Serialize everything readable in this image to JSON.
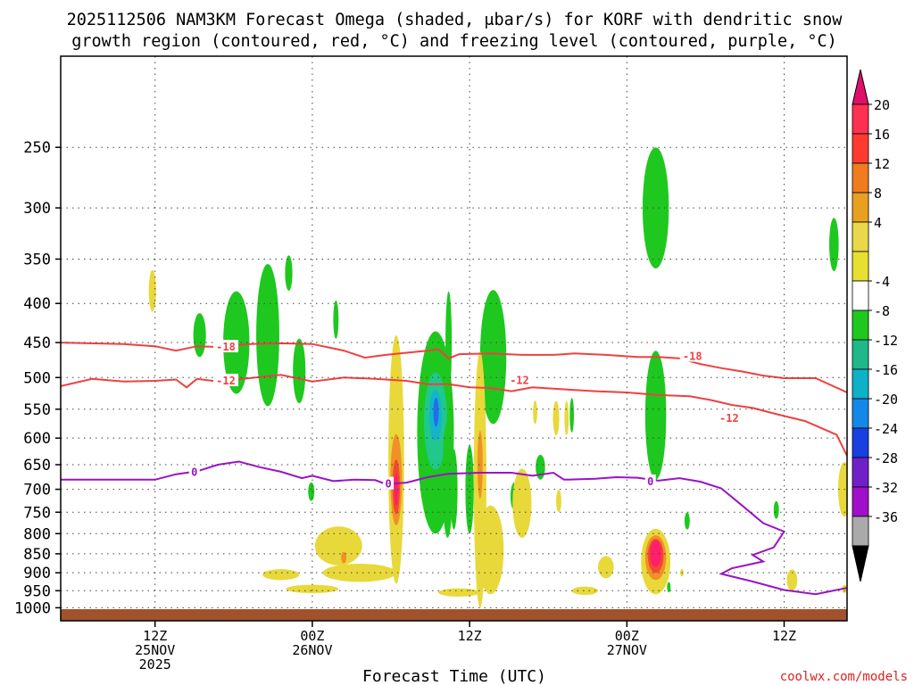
{
  "chart_data": {
    "type": "heatmap",
    "title_lines": [
      "2025112506 NAM3KM Forecast Omega (shaded, μbar/s) for KORF with dendritic snow",
      "growth region (contoured, red, °C) and freezing level (contoured, purple, °C)"
    ],
    "xlabel": "Forecast Time (UTC)",
    "credit": "coolwx.com/models",
    "y_scale": "log",
    "y_range_hpa": [
      1040,
      190
    ],
    "x_range_hours": [
      -18,
      132
    ],
    "y_ticks": [
      250,
      300,
      350,
      400,
      450,
      500,
      550,
      600,
      650,
      700,
      750,
      800,
      850,
      900,
      950,
      1000
    ],
    "x_ticks": [
      {
        "hour": 0,
        "lines": [
          "12Z",
          "25NOV",
          "2025"
        ]
      },
      {
        "hour": 30,
        "lines": [
          "00Z",
          "26NOV"
        ]
      },
      {
        "hour": 60,
        "lines": [
          "12Z"
        ]
      },
      {
        "hour": 90,
        "lines": [
          "00Z",
          "27NOV"
        ]
      },
      {
        "hour": 120,
        "lines": [
          "12Z"
        ]
      }
    ],
    "grid": true,
    "colorbar": {
      "labels": [
        "20",
        "16",
        "12",
        "8",
        "4",
        "-4",
        "-8",
        "-12",
        "-16",
        "-20",
        "-24",
        "-28",
        "-32",
        "-36"
      ],
      "colors_top_to_bottom": [
        "#ff3050",
        "#ff3b2f",
        "#f07b20",
        "#e8a020",
        "#e8d84a",
        "#e8e030",
        "#ffffff",
        "#1ec81e",
        "#20b888",
        "#10b0c8",
        "#1488e8",
        "#1840e0",
        "#7020c8",
        "#a010c8",
        "#aaaaaa"
      ],
      "top_arrow_color": "#e0106a",
      "bottom_arrow_color": "#000000"
    },
    "omega_regions": [
      {
        "value": -6,
        "t": 8.5,
        "p": 440,
        "dt": 1.2,
        "dp": 30
      },
      {
        "value": -6,
        "t": 15.5,
        "p": 450,
        "dt": 2.5,
        "dp": 75
      },
      {
        "value": -6,
        "t": 21.5,
        "p": 440,
        "dt": 2.2,
        "dp": 105
      },
      {
        "value": -6,
        "t": 25.5,
        "p": 365,
        "dt": 0.7,
        "dp": 20
      },
      {
        "value": -6,
        "t": 27.5,
        "p": 490,
        "dt": 1.2,
        "dp": 50
      },
      {
        "value": -6,
        "t": 34.5,
        "p": 420,
        "dt": 0.5,
        "dp": 25
      },
      {
        "value": -6,
        "t": 29.8,
        "p": 705,
        "dt": 0.6,
        "dp": 20
      },
      {
        "value": -6,
        "t": 53.5,
        "p": 590,
        "dt": 3.5,
        "dp": 210
      },
      {
        "value": -10,
        "t": 53.5,
        "p": 570,
        "dt": 2.2,
        "dp": 90
      },
      {
        "value": -14,
        "t": 53.5,
        "p": 560,
        "dt": 1.2,
        "dp": 45
      },
      {
        "value": -18,
        "t": 53.6,
        "p": 555,
        "dt": 0.5,
        "dp": 25
      },
      {
        "value": -6,
        "t": 55.8,
        "p": 680,
        "dt": 1.0,
        "dp": 130
      },
      {
        "value": -6,
        "t": 56.0,
        "p": 450,
        "dt": 0.6,
        "dp": 75
      },
      {
        "value": -6,
        "t": 57.0,
        "p": 700,
        "dt": 0.7,
        "dp": 90
      },
      {
        "value": -6,
        "t": 64.5,
        "p": 470,
        "dt": 2.5,
        "dp": 105
      },
      {
        "value": -6,
        "t": 60.0,
        "p": 700,
        "dt": 0.8,
        "dp": 100
      },
      {
        "value": -6,
        "t": 68.5,
        "p": 715,
        "dt": 0.7,
        "dp": 30
      },
      {
        "value": -6,
        "t": 73.5,
        "p": 655,
        "dt": 0.9,
        "dp": 25
      },
      {
        "value": -6,
        "t": 79.5,
        "p": 560,
        "dt": 0.4,
        "dp": 30
      },
      {
        "value": -6,
        "t": 95.5,
        "p": 300,
        "dt": 2.5,
        "dp": 60
      },
      {
        "value": -6,
        "t": 95.5,
        "p": 560,
        "dt": 2.0,
        "dp": 120
      },
      {
        "value": -6,
        "t": 98.0,
        "p": 940,
        "dt": 0.3,
        "dp": 15
      },
      {
        "value": -6,
        "t": 101.5,
        "p": 770,
        "dt": 0.5,
        "dp": 20
      },
      {
        "value": -6,
        "t": 118.5,
        "p": 745,
        "dt": 0.5,
        "dp": 20
      },
      {
        "value": -6,
        "t": 129.5,
        "p": 335,
        "dt": 0.9,
        "dp": 28
      },
      {
        "value": 6,
        "t": -0.5,
        "p": 385,
        "dt": 0.7,
        "dp": 25
      },
      {
        "value": 6,
        "t": 46.0,
        "p": 640,
        "dt": 1.5,
        "dp": 290
      },
      {
        "value": 10,
        "t": 46.0,
        "p": 680,
        "dt": 1.1,
        "dp": 100
      },
      {
        "value": 14,
        "t": 46.0,
        "p": 695,
        "dt": 0.7,
        "dp": 60
      },
      {
        "value": 18,
        "t": 46.0,
        "p": 700,
        "dt": 0.4,
        "dp": 35
      },
      {
        "value": 6,
        "t": 62.0,
        "p": 680,
        "dt": 1.2,
        "dp": 320
      },
      {
        "value": 10,
        "t": 62.0,
        "p": 650,
        "dt": 0.5,
        "dp": 70
      },
      {
        "value": 6,
        "t": 64.0,
        "p": 840,
        "dt": 2.5,
        "dp": 120
      },
      {
        "value": 6,
        "t": 70.0,
        "p": 730,
        "dt": 1.8,
        "dp": 80
      },
      {
        "value": 6,
        "t": 72.5,
        "p": 555,
        "dt": 0.4,
        "dp": 20
      },
      {
        "value": 6,
        "t": 76.5,
        "p": 565,
        "dt": 0.6,
        "dp": 30
      },
      {
        "value": 6,
        "t": 77.0,
        "p": 725,
        "dt": 0.5,
        "dp": 25
      },
      {
        "value": 6,
        "t": 78.5,
        "p": 565,
        "dt": 0.4,
        "dp": 30
      },
      {
        "value": 6,
        "t": 35.0,
        "p": 830,
        "dt": 4.5,
        "dp": 50
      },
      {
        "value": 10,
        "t": 36.0,
        "p": 860,
        "dt": 0.5,
        "dp": 15
      },
      {
        "value": 6,
        "t": 24.0,
        "p": 905,
        "dt": 3.5,
        "dp": 15
      },
      {
        "value": 6,
        "t": 39.0,
        "p": 900,
        "dt": 7.0,
        "dp": 25
      },
      {
        "value": 6,
        "t": 30.0,
        "p": 945,
        "dt": 5.0,
        "dp": 12
      },
      {
        "value": 6,
        "t": 58.0,
        "p": 955,
        "dt": 4.0,
        "dp": 12
      },
      {
        "value": 6,
        "t": 82.0,
        "p": 950,
        "dt": 2.5,
        "dp": 12
      },
      {
        "value": 6,
        "t": 86.0,
        "p": 885,
        "dt": 1.5,
        "dp": 30
      },
      {
        "value": 6,
        "t": 95.5,
        "p": 870,
        "dt": 2.8,
        "dp": 90
      },
      {
        "value": 10,
        "t": 95.5,
        "p": 860,
        "dt": 2.0,
        "dp": 60
      },
      {
        "value": 14,
        "t": 95.5,
        "p": 855,
        "dt": 1.5,
        "dp": 45
      },
      {
        "value": 18,
        "t": 95.5,
        "p": 850,
        "dt": 1.1,
        "dp": 35
      },
      {
        "value": 6,
        "t": 100.5,
        "p": 900,
        "dt": 0.3,
        "dp": 10
      },
      {
        "value": 6,
        "t": 121.5,
        "p": 920,
        "dt": 1.0,
        "dp": 30
      },
      {
        "value": 6,
        "t": 131.5,
        "p": 700,
        "dt": 1.2,
        "dp": 60
      },
      {
        "value": 6,
        "t": 131.5,
        "p": 945,
        "dt": 0.5,
        "dp": 12
      }
    ],
    "contours": [
      {
        "name": "-18",
        "color": "#f04040",
        "label": "-18",
        "label_at": [
          [
            13.5,
            456
          ],
          [
            102.5,
            469
          ]
        ],
        "points": [
          [
            -18,
            450
          ],
          [
            -6,
            452
          ],
          [
            0,
            455
          ],
          [
            4,
            461
          ],
          [
            8,
            455
          ],
          [
            12,
            456
          ],
          [
            18,
            452
          ],
          [
            24,
            451
          ],
          [
            30,
            452
          ],
          [
            34,
            458
          ],
          [
            36,
            461
          ],
          [
            40,
            471
          ],
          [
            44,
            467
          ],
          [
            48,
            464
          ],
          [
            52,
            461
          ],
          [
            54,
            459
          ],
          [
            56,
            472
          ],
          [
            58,
            466
          ],
          [
            64,
            465
          ],
          [
            70,
            467
          ],
          [
            76,
            467
          ],
          [
            80,
            465
          ],
          [
            86,
            467
          ],
          [
            92,
            470
          ],
          [
            96,
            470
          ],
          [
            100,
            472
          ],
          [
            104,
            480
          ],
          [
            108,
            486
          ],
          [
            112,
            491
          ],
          [
            116,
            497
          ],
          [
            120,
            501
          ],
          [
            126,
            501
          ],
          [
            132,
            523
          ]
        ]
      },
      {
        "name": "-12",
        "color": "#f04040",
        "label": "-12",
        "label_at": [
          [
            13.5,
            505
          ],
          [
            69.5,
            504
          ],
          [
            109.5,
            565
          ]
        ],
        "points": [
          [
            -18,
            513
          ],
          [
            -12,
            502
          ],
          [
            -6,
            506
          ],
          [
            0,
            505
          ],
          [
            4,
            503
          ],
          [
            6,
            515
          ],
          [
            8,
            502
          ],
          [
            12,
            506
          ],
          [
            18,
            501
          ],
          [
            24,
            496
          ],
          [
            30,
            506
          ],
          [
            36,
            500
          ],
          [
            42,
            502
          ],
          [
            48,
            505
          ],
          [
            52,
            510
          ],
          [
            56,
            510
          ],
          [
            60,
            515
          ],
          [
            64,
            516
          ],
          [
            68,
            521
          ],
          [
            72,
            515
          ],
          [
            78,
            518
          ],
          [
            84,
            521
          ],
          [
            90,
            523
          ],
          [
            96,
            527
          ],
          [
            102,
            529
          ],
          [
            106,
            535
          ],
          [
            110,
            543
          ],
          [
            114,
            548
          ],
          [
            118,
            557
          ],
          [
            124,
            570
          ],
          [
            130,
            594
          ],
          [
            132,
            633
          ]
        ]
      },
      {
        "name": "0",
        "color": "#9a12c8",
        "label": "0",
        "label_at": [
          [
            7.5,
            665
          ],
          [
            44.5,
            689
          ],
          [
            94.5,
            684
          ]
        ],
        "points": [
          [
            -18,
            680
          ],
          [
            -6,
            680
          ],
          [
            0,
            680
          ],
          [
            4,
            669
          ],
          [
            8,
            663
          ],
          [
            12,
            650
          ],
          [
            16,
            644
          ],
          [
            20,
            655
          ],
          [
            24,
            664
          ],
          [
            28,
            677
          ],
          [
            30,
            672
          ],
          [
            34,
            683
          ],
          [
            38,
            680
          ],
          [
            42,
            681
          ],
          [
            44,
            689
          ],
          [
            48,
            686
          ],
          [
            52,
            675
          ],
          [
            56,
            668
          ],
          [
            62,
            666
          ],
          [
            68,
            666
          ],
          [
            72,
            672
          ],
          [
            76,
            666
          ],
          [
            78,
            680
          ],
          [
            84,
            678
          ],
          [
            88,
            675
          ],
          [
            92,
            676
          ],
          [
            96,
            682
          ],
          [
            100,
            677
          ],
          [
            104,
            684
          ],
          [
            108,
            698
          ],
          [
            112,
            735
          ],
          [
            116,
            775
          ],
          [
            120,
            795
          ],
          [
            118,
            834
          ],
          [
            114,
            853
          ],
          [
            116,
            870
          ],
          [
            110,
            888
          ],
          [
            108,
            903
          ],
          [
            114,
            924
          ],
          [
            120,
            948
          ],
          [
            126,
            960
          ],
          [
            132,
            942
          ]
        ]
      }
    ]
  }
}
